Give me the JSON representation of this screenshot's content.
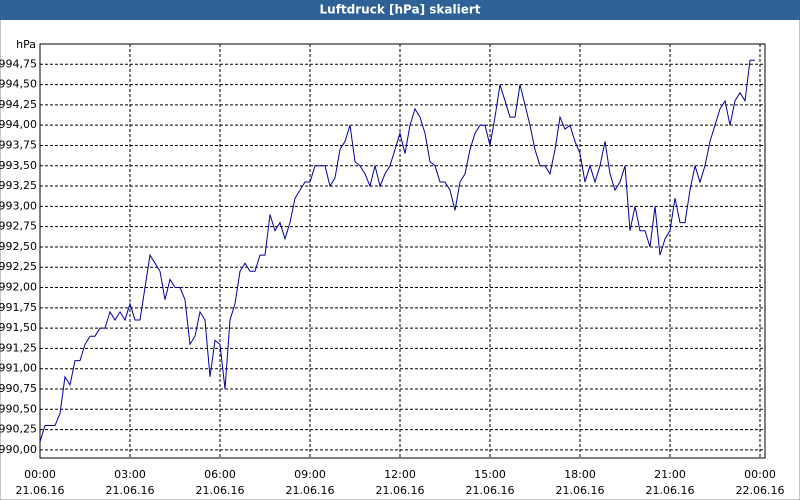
{
  "chart_data": {
    "type": "line",
    "title": "Luftdruck [hPa] skaliert",
    "y_label": "hPa",
    "xlim": [
      0,
      1440
    ],
    "ylim": [
      989.9,
      995.0
    ],
    "grid": true,
    "xticks": [
      {
        "value": 0,
        "label": "00:00",
        "date": "21.06.16"
      },
      {
        "value": 180,
        "label": "03:00",
        "date": "21.06.16"
      },
      {
        "value": 360,
        "label": "06:00",
        "date": "21.06.16"
      },
      {
        "value": 540,
        "label": "09:00",
        "date": "21.06.16"
      },
      {
        "value": 720,
        "label": "12:00",
        "date": "21.06.16"
      },
      {
        "value": 900,
        "label": "15:00",
        "date": "21.06.16"
      },
      {
        "value": 1080,
        "label": "18:00",
        "date": "21.06.16"
      },
      {
        "value": 1260,
        "label": "21:00",
        "date": "21.06.16"
      },
      {
        "value": 1440,
        "label": "00:00",
        "date": "22.06.16"
      }
    ],
    "yticks": [
      {
        "value": 990,
        "label": "990,00"
      },
      {
        "value": 990.25,
        "label": "990,25"
      },
      {
        "value": 990.5,
        "label": "990,50"
      },
      {
        "value": 990.75,
        "label": "990,75"
      },
      {
        "value": 991,
        "label": "991,00"
      },
      {
        "value": 991.25,
        "label": "991,25"
      },
      {
        "value": 991.5,
        "label": "991,50"
      },
      {
        "value": 991.75,
        "label": "991,75"
      },
      {
        "value": 992,
        "label": "992,00"
      },
      {
        "value": 992.25,
        "label": "992,25"
      },
      {
        "value": 992.5,
        "label": "992,50"
      },
      {
        "value": 992.75,
        "label": "992,75"
      },
      {
        "value": 993,
        "label": "993,00"
      },
      {
        "value": 993.25,
        "label": "993,25"
      },
      {
        "value": 993.5,
        "label": "993,50"
      },
      {
        "value": 993.75,
        "label": "993,75"
      },
      {
        "value": 994,
        "label": "994,00"
      },
      {
        "value": 994.25,
        "label": "994,25"
      },
      {
        "value": 994.5,
        "label": "994,50"
      },
      {
        "value": 994.75,
        "label": "994,75"
      }
    ],
    "x": [
      0,
      10,
      20,
      30,
      40,
      50,
      60,
      70,
      80,
      90,
      100,
      110,
      120,
      130,
      140,
      150,
      160,
      170,
      180,
      190,
      200,
      210,
      220,
      230,
      240,
      250,
      260,
      270,
      280,
      290,
      300,
      310,
      320,
      330,
      340,
      350,
      360,
      370,
      380,
      390,
      400,
      410,
      420,
      430,
      440,
      450,
      460,
      470,
      480,
      490,
      500,
      510,
      520,
      530,
      540,
      550,
      560,
      570,
      580,
      590,
      600,
      610,
      620,
      630,
      640,
      650,
      660,
      670,
      680,
      690,
      700,
      710,
      720,
      730,
      740,
      750,
      760,
      770,
      780,
      790,
      800,
      810,
      820,
      830,
      840,
      850,
      860,
      870,
      880,
      890,
      900,
      910,
      920,
      930,
      940,
      950,
      960,
      970,
      980,
      990,
      1000,
      1010,
      1020,
      1030,
      1040,
      1050,
      1060,
      1070,
      1080,
      1090,
      1100,
      1110,
      1120,
      1130,
      1140,
      1150,
      1160,
      1170,
      1180,
      1190,
      1200,
      1210,
      1220,
      1230,
      1240,
      1250,
      1260,
      1270,
      1280,
      1290,
      1300,
      1310,
      1320,
      1330,
      1340,
      1350,
      1360,
      1370,
      1380,
      1390,
      1400,
      1410,
      1420,
      1430
    ],
    "series": [
      {
        "name": "Luftdruck",
        "color": "#0000a0",
        "values": [
          990.1,
          990.3,
          990.3,
          990.3,
          990.45,
          990.9,
          990.8,
          991.1,
          991.1,
          991.3,
          991.4,
          991.4,
          991.5,
          991.5,
          991.7,
          991.6,
          991.7,
          991.6,
          991.8,
          991.6,
          991.6,
          992.0,
          992.4,
          992.3,
          992.2,
          991.85,
          992.1,
          992.0,
          992.0,
          991.85,
          991.3,
          991.4,
          991.7,
          991.6,
          990.9,
          991.35,
          991.3,
          990.75,
          991.6,
          991.8,
          992.2,
          992.3,
          992.2,
          992.2,
          992.4,
          992.4,
          992.9,
          992.7,
          992.8,
          992.6,
          992.8,
          993.1,
          993.2,
          993.3,
          993.3,
          993.5,
          993.5,
          993.5,
          993.25,
          993.35,
          993.7,
          993.8,
          994.0,
          993.55,
          993.5,
          993.4,
          993.25,
          993.5,
          993.25,
          993.4,
          993.5,
          993.7,
          993.9,
          993.65,
          994.0,
          994.2,
          994.1,
          993.9,
          993.55,
          993.5,
          993.3,
          993.3,
          993.2,
          992.95,
          993.3,
          993.4,
          993.7,
          993.9,
          994.0,
          994.0,
          993.75,
          994.1,
          994.5,
          994.3,
          994.1,
          994.1,
          994.5,
          994.25,
          994.0,
          993.7,
          993.5,
          993.5,
          993.4,
          993.7,
          994.1,
          993.95,
          994.0,
          993.8,
          993.65,
          993.3,
          993.5,
          993.3,
          993.5,
          993.8,
          993.4,
          993.2,
          993.3,
          993.5,
          992.7,
          993.0,
          992.7,
          992.7,
          992.5,
          993.0,
          992.4,
          992.6,
          992.7,
          993.1,
          992.8,
          992.8,
          993.2,
          993.5,
          993.3,
          993.5,
          993.8,
          994.0,
          994.2,
          994.3,
          994.0,
          994.3,
          994.4,
          994.3,
          994.8,
          994.8
        ]
      }
    ]
  }
}
